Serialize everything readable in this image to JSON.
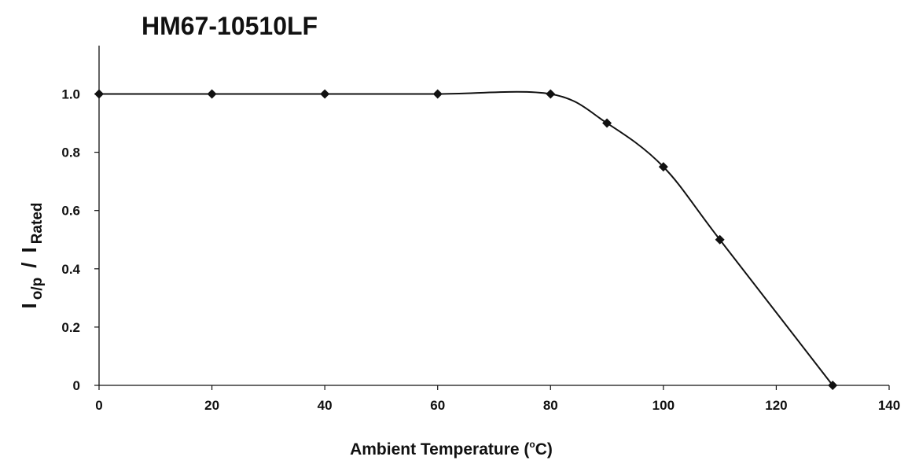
{
  "chart_data": {
    "type": "line",
    "title": "HM67-10510LF",
    "xlabel": "Ambient Temperature (°C)",
    "xlabel_parts": {
      "before": "Ambient Temperature (",
      "superscript": "o",
      "after": "C)"
    },
    "ylabel_parts": {
      "i1": "I",
      "sub1": "o/p",
      "slash": "/",
      "i2": "I",
      "sub2": "Rated"
    },
    "xlim": [
      0,
      140
    ],
    "ylim": [
      0,
      1.1
    ],
    "x_ticks": [
      0,
      20,
      40,
      60,
      80,
      100,
      120,
      140
    ],
    "x_tick_labels": [
      "0",
      "20",
      "40",
      "60",
      "80",
      "100",
      "120",
      "140"
    ],
    "y_ticks": [
      0,
      0.2,
      0.4,
      0.6,
      0.8,
      1.0
    ],
    "y_tick_labels": [
      "0",
      "0.2",
      "0.4",
      "0.6",
      "0.8",
      "1.0"
    ],
    "grid": false,
    "legend": false,
    "series": [
      {
        "x": [
          0,
          20,
          40,
          60,
          80,
          90,
          100,
          110,
          130
        ],
        "y": [
          1.0,
          1.0,
          1.0,
          1.0,
          1.0,
          0.9,
          0.75,
          0.5,
          0.0
        ],
        "marker": "diamond",
        "color": "#111111"
      }
    ]
  }
}
